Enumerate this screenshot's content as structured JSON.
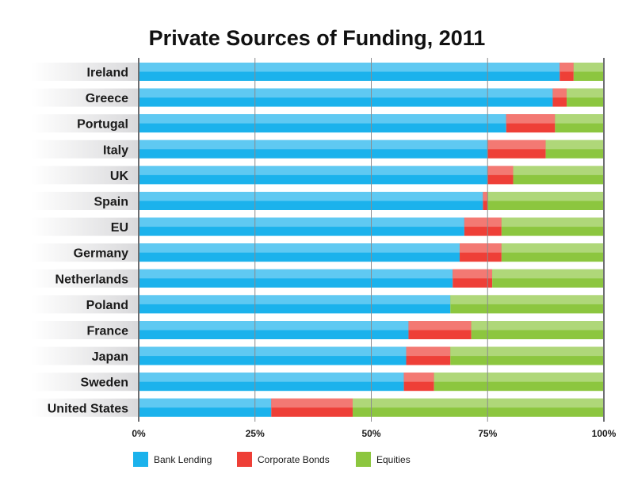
{
  "chart_data": {
    "type": "bar",
    "orientation": "horizontal",
    "stacked": true,
    "title": "Private Sources of Funding, 2011",
    "xlabel": "",
    "ylabel": "",
    "xlim": [
      0,
      100
    ],
    "x_ticks": [
      "0%",
      "25%",
      "50%",
      "75%",
      "100%"
    ],
    "grid": true,
    "legend_position": "bottom",
    "categories": [
      "Ireland",
      "Greece",
      "Portugal",
      "Italy",
      "UK",
      "Spain",
      "EU",
      "Germany",
      "Netherlands",
      "Poland",
      "France",
      "Japan",
      "Sweden",
      "United States"
    ],
    "series": [
      {
        "name": "Bank Lending",
        "color": "#1bb2ec",
        "values": [
          90.5,
          89,
          79,
          75,
          75,
          74,
          70,
          69,
          67.5,
          67,
          58,
          57.5,
          57,
          28.5
        ]
      },
      {
        "name": "Corporate Bonds",
        "color": "#ee3f37",
        "values": [
          3,
          3,
          10.5,
          12.5,
          5.5,
          1,
          8,
          9,
          8.5,
          0,
          13.5,
          9.5,
          6.5,
          17.5
        ]
      },
      {
        "name": "Equities",
        "color": "#8cc63f",
        "values": [
          6.5,
          8,
          10.5,
          12.5,
          19.5,
          25,
          22,
          22,
          24,
          33,
          28.5,
          33,
          36.5,
          54
        ]
      }
    ]
  }
}
